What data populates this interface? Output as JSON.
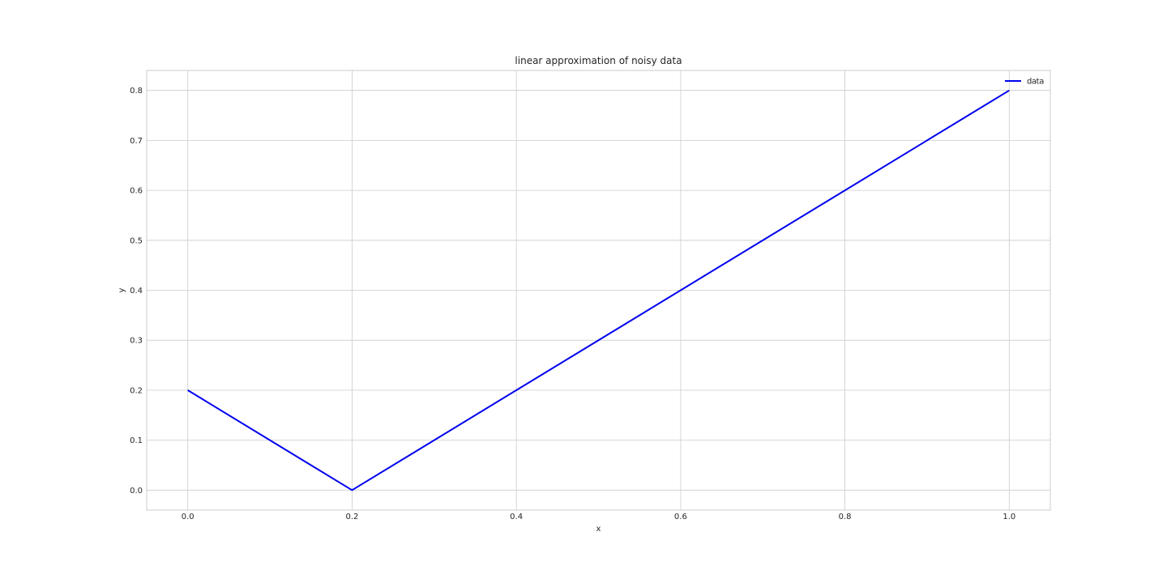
{
  "chart_data": {
    "type": "line",
    "title": "linear approximation of noisy data",
    "xlabel": "x",
    "ylabel": "y",
    "xlim": [
      -0.05,
      1.05
    ],
    "ylim": [
      -0.04,
      0.84
    ],
    "xticks": [
      0.0,
      0.2,
      0.4,
      0.6,
      0.8,
      1.0
    ],
    "xtick_labels": [
      "0.0",
      "0.2",
      "0.4",
      "0.6",
      "0.8",
      "1.0"
    ],
    "yticks": [
      0.0,
      0.1,
      0.2,
      0.3,
      0.4,
      0.5,
      0.6,
      0.7,
      0.8
    ],
    "ytick_labels": [
      "0.0",
      "0.1",
      "0.2",
      "0.3",
      "0.4",
      "0.5",
      "0.6",
      "0.7",
      "0.8"
    ],
    "grid": true,
    "legend_position": "top-right",
    "series": [
      {
        "name": "data",
        "color": "#0000ee",
        "x": [
          0.0,
          0.2,
          1.0
        ],
        "y": [
          0.2,
          0.0,
          0.8
        ]
      }
    ]
  }
}
